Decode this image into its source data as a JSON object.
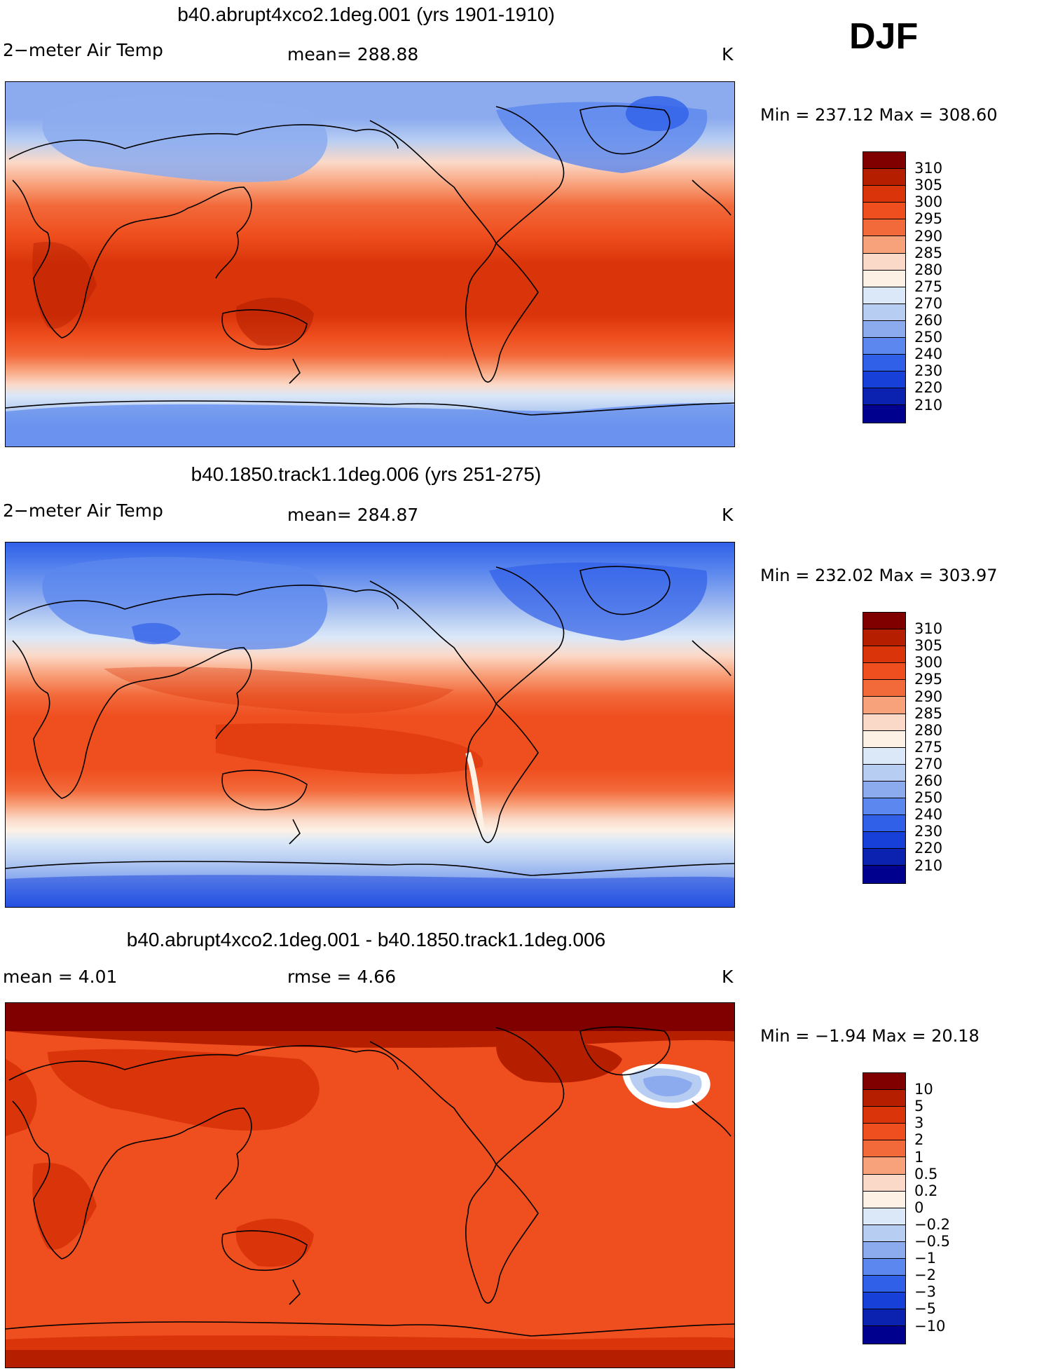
{
  "season": "DJF",
  "units_label": "K",
  "land_color": "#1a1a1a",
  "panels": [
    {
      "title": "b40.abrupt4xco2.1deg.001 (yrs 1901-1910)",
      "left_label": "2−meter Air Temp",
      "center_label": "mean=  288.88",
      "right_label": "K",
      "minmax": "Min = 237.12 Max = 308.60",
      "levels": [
        "310",
        "305",
        "300",
        "295",
        "290",
        "285",
        "280",
        "275",
        "270",
        "260",
        "250",
        "240",
        "230",
        "220",
        "210"
      ],
      "colors": [
        "#800000",
        "#b51f00",
        "#d9340a",
        "#ef4e1e",
        "#f2693a",
        "#f8a27c",
        "#fbd9c8",
        "#fdf1e6",
        "#dbe8f8",
        "#b7cdf2",
        "#8cabef",
        "#5b87ee",
        "#3060e8",
        "#1740d9",
        "#0b22b0",
        "#00008f"
      ]
    },
    {
      "title": "b40.1850.track1.1deg.006 (yrs 251-275)",
      "left_label": "2−meter Air Temp",
      "center_label": "mean=  284.87",
      "right_label": "K",
      "minmax": "Min = 232.02 Max = 303.97",
      "levels": [
        "310",
        "305",
        "300",
        "295",
        "290",
        "285",
        "280",
        "275",
        "270",
        "260",
        "250",
        "240",
        "230",
        "220",
        "210"
      ],
      "colors": [
        "#800000",
        "#b51f00",
        "#d9340a",
        "#ef4e1e",
        "#f2693a",
        "#f8a27c",
        "#fbd9c8",
        "#fdf1e6",
        "#dbe8f8",
        "#b7cdf2",
        "#8cabef",
        "#5b87ee",
        "#3060e8",
        "#1740d9",
        "#0b22b0",
        "#00008f"
      ]
    },
    {
      "title": "b40.abrupt4xco2.1deg.001 - b40.1850.track1.1deg.006",
      "left_label": "mean =     4.01",
      "center_label": "rmse =     4.66",
      "right_label": "K",
      "minmax": "Min =  −1.94 Max =   20.18",
      "levels": [
        "10",
        "5",
        "3",
        "2",
        "1",
        "0.5",
        "0.2",
        "0",
        "−0.2",
        "−0.5",
        "−1",
        "−2",
        "−3",
        "−5",
        "−10"
      ],
      "colors": [
        "#800000",
        "#b51f00",
        "#d9340a",
        "#ef4e1e",
        "#f2693a",
        "#f8a27c",
        "#fbd9c8",
        "#fdf1e6",
        "#dbe8f8",
        "#b7cdf2",
        "#8cabef",
        "#5b87ee",
        "#3060e8",
        "#1740d9",
        "#0b22b0",
        "#00008f"
      ]
    }
  ]
}
